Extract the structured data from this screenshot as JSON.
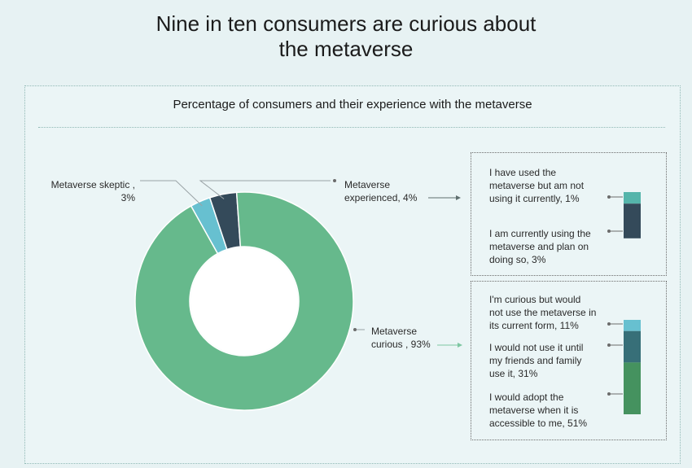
{
  "title_line1": "Nine in ten consumers are curious about",
  "title_line2": "the metaverse",
  "subtitle_bold": "Percentage",
  "subtitle_rest": " of consumers and their experience with the metaverse",
  "chart_data": {
    "type": "pie",
    "title": "Percentage of consumers and their experience with the metaverse",
    "donut": {
      "series": [
        {
          "name": "Metaverse curious",
          "value": 93,
          "color": "#66b98c"
        },
        {
          "name": "Metaverse skeptic",
          "value": 3,
          "color": "#67c0d0"
        },
        {
          "name": "Metaverse experienced",
          "value": 4,
          "color": "#344a5a"
        }
      ]
    },
    "breakdowns": [
      {
        "parent": "Metaverse experienced",
        "segments": [
          {
            "name": "I have used the metaverse but am not using it currently",
            "value": 1,
            "color": "#55b5ab"
          },
          {
            "name": "I am currently using the metaverse and plan on doing so",
            "value": 3,
            "color": "#344a5a"
          }
        ]
      },
      {
        "parent": "Metaverse curious",
        "segments": [
          {
            "name": "I'm curious but would not use the metaverse in its current form",
            "value": 11,
            "color": "#67c0d0"
          },
          {
            "name": "I would not use it until my friends and family use it",
            "value": 31,
            "color": "#376f78"
          },
          {
            "name": "I would adopt the metaverse when it is accessible to me",
            "value": 51,
            "color": "#45925f"
          }
        ]
      }
    ]
  },
  "labels": {
    "skeptic": [
      "Metaverse skeptic ,",
      "3%"
    ],
    "experienced": [
      "Metaverse",
      "experienced, 4%"
    ],
    "curious": [
      "Metaverse",
      "curious , 93%"
    ],
    "exp_used": [
      "I have used the",
      "metaverse but am not",
      "using it currently, 1%"
    ],
    "exp_current": [
      "I am currently using the",
      "metaverse and plan on",
      "doing so, 3%"
    ],
    "cur_form": [
      "I'm curious but would",
      "not use the metaverse in",
      "its current form, 11%"
    ],
    "cur_friends": [
      "I would not use it until",
      "my friends and family",
      "use it, 31%"
    ],
    "cur_adopt": [
      "I would adopt the",
      "metaverse when it is",
      "accessible to me, 51%"
    ]
  }
}
